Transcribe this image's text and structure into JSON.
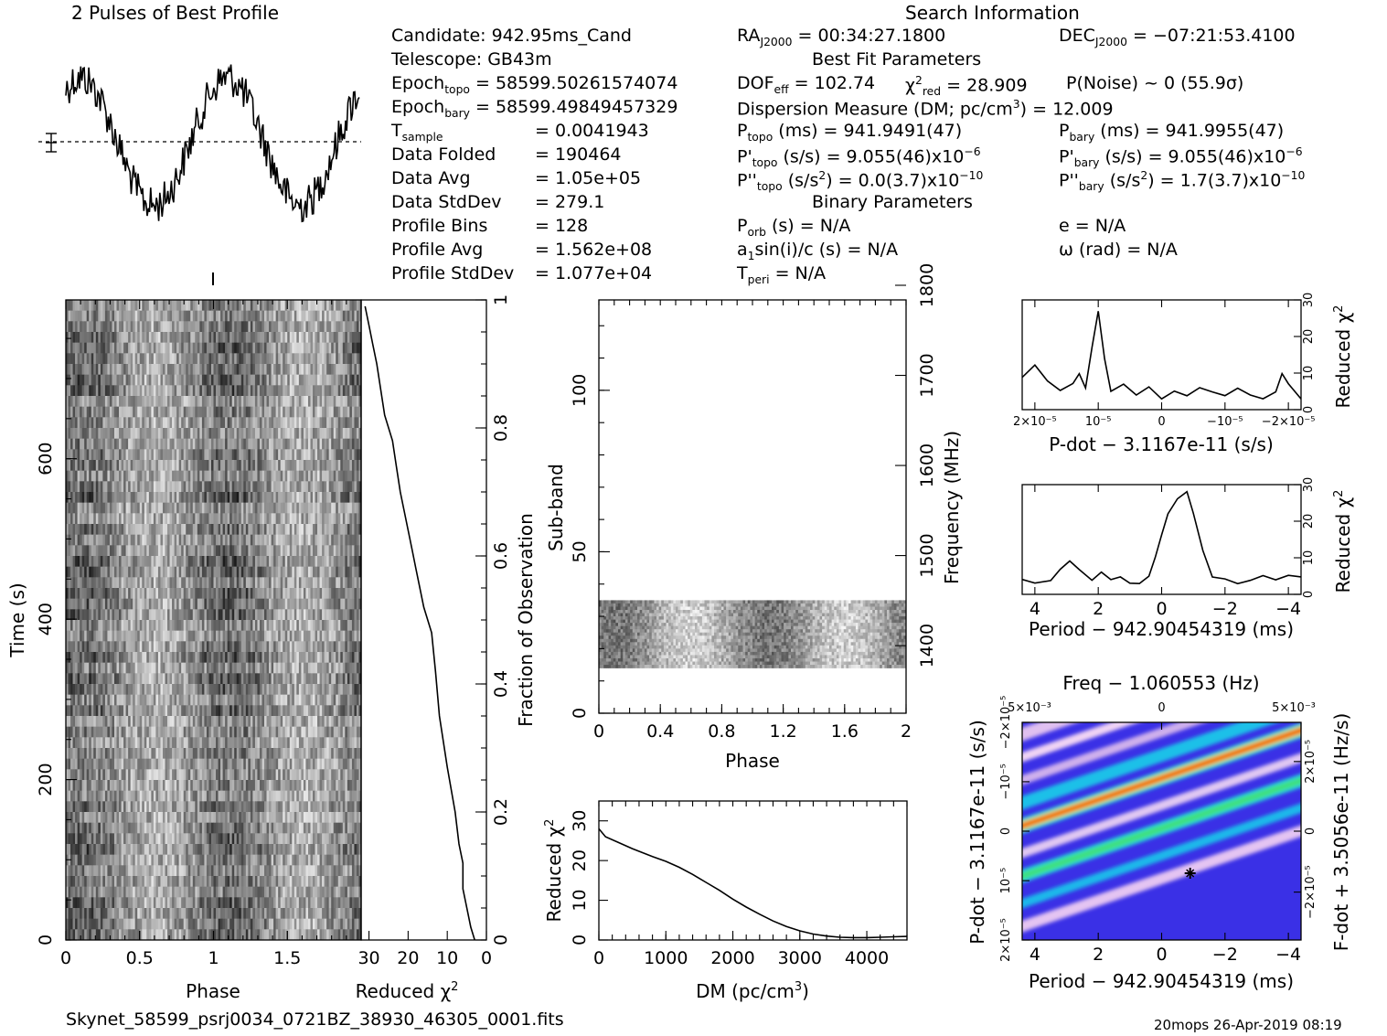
{
  "header": {
    "profile_title": "2 Pulses of Best Profile",
    "search_title": "Search Information",
    "candidate": "Candidate:  942.95ms_Cand",
    "telescope": "Telescope:  GB43m",
    "epoch_topo_label": "Epoch",
    "epoch_topo_sub": "topo",
    "epoch_topo_value": " = 58599.50261574074",
    "epoch_bary_label": "Epoch",
    "epoch_bary_sub": "bary",
    "epoch_bary_value": " = 58599.49849457329",
    "tsample_label": "T",
    "tsample_sub": "sample",
    "tsample_value": "=   0.0041943",
    "data_folded_label": "Data Folded",
    "data_folded_value": "=   190464",
    "data_avg_label": "Data Avg",
    "data_avg_value": "=   1.05e+05",
    "data_std_label": "Data StdDev",
    "data_std_value": "=   279.1",
    "profile_bins_label": "Profile Bins",
    "profile_bins_value": "=   128",
    "profile_avg_label": "Profile Avg",
    "profile_avg_value": "=   1.562e+08",
    "profile_std_label": "Profile StdDev",
    "profile_std_value": "=   1.077e+04"
  },
  "search": {
    "ra_label": "RA",
    "ra_sub": "J2000",
    "ra_value": " = 00:34:27.1800",
    "dec_label": "DEC",
    "dec_sub": "J2000",
    "dec_value": " = −07:21:53.4100",
    "best_fit_title": "Best Fit Parameters",
    "dof_label": "DOF",
    "dof_sub": "eff",
    "dof_value": " = 102.74",
    "chi_label": "χ",
    "chi_sup": "2",
    "chi_sub": "red",
    "chi_value": " = 28.909",
    "pnoise": "P(Noise) ~ 0   (55.9σ)",
    "dm_label": "Dispersion Measure (DM; pc/cm",
    "dm_sup": "3",
    "dm_value": ") = 12.009",
    "ptopo_label": "P",
    "ptopo_sub": "topo",
    "ptopo_value": " (ms) =  941.9491(47)",
    "pbary_label": "P",
    "pbary_sub": "bary",
    "pbary_value": " (ms) =  941.9955(47)",
    "pdtopo_label": "P'",
    "pdtopo_sub": "topo",
    "pdtopo_value": " (s/s) =  9.055(46)x10",
    "pdtopo_exp": "−6",
    "pdbary_label": "P'",
    "pdbary_sub": "bary",
    "pdbary_value": " (s/s) =  9.055(46)x10",
    "pdbary_exp": "−6",
    "pddtopo_label": "P''",
    "pddtopo_sub": "topo",
    "pddtopo_value": " (s/s",
    "pddtopo_sup": "2",
    "pddtopo_rest": ") = 0.0(3.7)x10",
    "pddtopo_exp": "−10",
    "pddbary_label": "P''",
    "pddbary_sub": "bary",
    "pddbary_value": " (s/s",
    "pddbary_sup": "2",
    "pddbary_rest": ") =  1.7(3.7)x10",
    "pddbary_exp": "−10",
    "binary_title": "Binary Parameters",
    "porb_label": "P",
    "porb_sub": "orb",
    "porb_value": " (s) = N/A",
    "e_value": "e = N/A",
    "asini_label": "a",
    "asini_sub": "1",
    "asini_value": "sin(i)/c (s) = N/A",
    "omega_value": "ω (rad) = N/A",
    "tperi_label": "T",
    "tperi_sub": "peri",
    "tperi_value": " = N/A"
  },
  "footer": {
    "filename": "Skynet_58599_psrj0034_0721BZ_38930_46305_0001.fits",
    "stamp": "20mops 26-Apr-2019 08:19"
  },
  "chart_data": [
    {
      "id": "profile",
      "type": "line",
      "title": "2 Pulses of Best Profile",
      "x_range": [
        0,
        2
      ],
      "phase_peaks": [
        0.1,
        1.1
      ],
      "phase_trough": [
        0.6,
        1.6
      ],
      "relative_amplitude": 1.0
    },
    {
      "id": "time_phase",
      "type": "heatmap",
      "xlabel": "Phase",
      "ylabel": "Time (s)",
      "x_ticks": [
        "0",
        "0.5",
        "1",
        "1.5"
      ],
      "y_ticks": [
        "0",
        "200",
        "400",
        "600"
      ],
      "xlim": [
        0,
        2
      ],
      "ylim": [
        0,
        798
      ]
    },
    {
      "id": "time_chi",
      "type": "line",
      "xlabel": "Reduced χ",
      "xlabel_sup": "2",
      "ylabel_right": "Fraction of Observation",
      "x_ticks": [
        "30",
        "20",
        "10",
        "0"
      ],
      "y_ticks": [
        "0",
        "0.2",
        "0.4",
        "0.6",
        "0.8",
        "1"
      ],
      "xlim": [
        32,
        0
      ],
      "ylim": [
        0,
        1
      ],
      "x": [
        3,
        4,
        5,
        6,
        6,
        7,
        8,
        10,
        11,
        12,
        13,
        14,
        16,
        18,
        19,
        20,
        21,
        22,
        23,
        24,
        26,
        27,
        28,
        29,
        30,
        31
      ],
      "y": [
        0.0,
        0.02,
        0.05,
        0.08,
        0.12,
        0.15,
        0.2,
        0.27,
        0.31,
        0.35,
        0.42,
        0.48,
        0.52,
        0.58,
        0.61,
        0.64,
        0.67,
        0.7,
        0.74,
        0.78,
        0.82,
        0.86,
        0.9,
        0.93,
        0.96,
        0.99
      ]
    },
    {
      "id": "subband_phase",
      "type": "heatmap",
      "xlabel": "Phase",
      "ylabel": "Sub-band",
      "ylabel_right": "Frequency (MHz)",
      "x_ticks": [
        "0",
        "0.4",
        "0.8",
        "1.2",
        "1.6",
        "2"
      ],
      "y_ticks": [
        "0",
        "50",
        "100"
      ],
      "y_right_ticks": [
        "1400",
        "1500",
        "1600",
        "1700",
        "1800"
      ],
      "xlim": [
        0,
        2
      ],
      "ylim": [
        0,
        128
      ],
      "active_subbands": [
        14,
        35
      ]
    },
    {
      "id": "dm_chi",
      "type": "line",
      "xlabel": "DM (pc/cm",
      "xlabel_sup": "3",
      "xlabel_end": ")",
      "ylabel": "Reduced χ",
      "ylabel_sup": "2",
      "x_ticks": [
        "0",
        "1000",
        "2000",
        "3000",
        "4000"
      ],
      "y_ticks": [
        "0",
        "10",
        "20",
        "30"
      ],
      "xlim": [
        0,
        4600
      ],
      "ylim": [
        0,
        35
      ],
      "x": [
        0,
        100,
        300,
        500,
        800,
        1000,
        1200,
        1400,
        1600,
        1800,
        2000,
        2200,
        2400,
        2600,
        2800,
        3000,
        3200,
        3400,
        3600,
        3800,
        4000,
        4200,
        4400,
        4600
      ],
      "y": [
        28,
        26,
        24.5,
        23,
        21,
        19.8,
        18.3,
        16.5,
        14.5,
        12.5,
        10.3,
        8.3,
        6.5,
        4.8,
        3.4,
        2.3,
        1.5,
        1.0,
        0.7,
        0.6,
        0.6,
        0.7,
        0.8,
        0.9
      ]
    },
    {
      "id": "pdot_chi",
      "type": "line",
      "xlabel": "P-dot − 3.1167e-11 (s/s)",
      "ylabel_right": "Reduced χ",
      "ylabel_sup": "2",
      "x_ticks": [
        "2×10⁻⁵",
        "10⁻⁵",
        "0",
        "−10⁻⁵",
        "−2×10⁻⁵"
      ],
      "y_ticks": [
        "0",
        "10",
        "20",
        "30"
      ],
      "xlim": [
        2.2e-05,
        -2.2e-05
      ],
      "ylim": [
        0,
        30
      ],
      "x": [
        2.2e-05,
        2e-05,
        1.8e-05,
        1.6e-05,
        1.4e-05,
        1.3e-05,
        1.2e-05,
        1.1e-05,
        1e-05,
        9e-06,
        8e-06,
        6e-06,
        4e-06,
        2e-06,
        0,
        -2e-06,
        -4e-06,
        -6e-06,
        -8e-06,
        -1e-05,
        -1.2e-05,
        -1.4e-05,
        -1.6e-05,
        -1.8e-05,
        -1.9e-05,
        -2e-05,
        -2.2e-05
      ],
      "y": [
        9,
        12,
        8,
        5,
        7,
        10,
        6,
        17,
        27,
        14,
        5,
        7,
        4,
        6,
        3,
        5,
        4,
        6,
        5,
        4,
        6,
        4,
        3,
        5,
        10,
        7,
        3
      ]
    },
    {
      "id": "period_chi",
      "type": "line",
      "xlabel": "Period − 942.90454319 (ms)",
      "ylabel_right": "Reduced χ",
      "ylabel_sup": "2",
      "x_ticks": [
        "4",
        "2",
        "0",
        "−2",
        "−4"
      ],
      "y_ticks": [
        "0",
        "10",
        "20",
        "30"
      ],
      "xlim": [
        4.4,
        -4.4
      ],
      "ylim": [
        0,
        30
      ],
      "x": [
        4.4,
        4.0,
        3.5,
        3.2,
        2.9,
        2.6,
        2.2,
        1.9,
        1.6,
        1.3,
        1.0,
        0.7,
        0.4,
        0.2,
        0.0,
        -0.2,
        -0.5,
        -0.8,
        -1.0,
        -1.3,
        -1.6,
        -2.0,
        -2.4,
        -2.8,
        -3.2,
        -3.6,
        -4.0,
        -4.4
      ],
      "y": [
        4,
        3,
        4,
        7,
        9,
        7,
        4,
        6,
        4,
        5,
        3,
        3,
        5,
        10,
        16,
        22,
        26,
        28,
        22,
        12,
        5,
        4,
        3,
        4,
        5,
        4,
        5,
        5
      ]
    },
    {
      "id": "ppdot",
      "type": "heatmap",
      "title": "Freq − 1.060553 (Hz)",
      "xlabel": "Period − 942.90454319 (ms)",
      "ylabel": "P-dot − 3.1167e-11 (s/s)",
      "ylabel_right": "F-dot + 3.5056e-11 (Hz/s)",
      "x_ticks": [
        "4",
        "2",
        "0",
        "−2",
        "−4"
      ],
      "top_ticks": [
        "5×10⁻³",
        "0",
        "5×10⁻³"
      ],
      "left_ticks": [
        "2×10⁻⁵",
        "10⁻⁵",
        "0",
        "−10⁻⁵",
        "−2×10⁻⁵"
      ],
      "right_ticks": [
        "−2×10⁻⁵",
        "0",
        "2×10⁻⁵"
      ],
      "xlim": [
        4.4,
        -4.4
      ],
      "best_fit": [
        -0.9,
        8.5e-06
      ]
    }
  ]
}
